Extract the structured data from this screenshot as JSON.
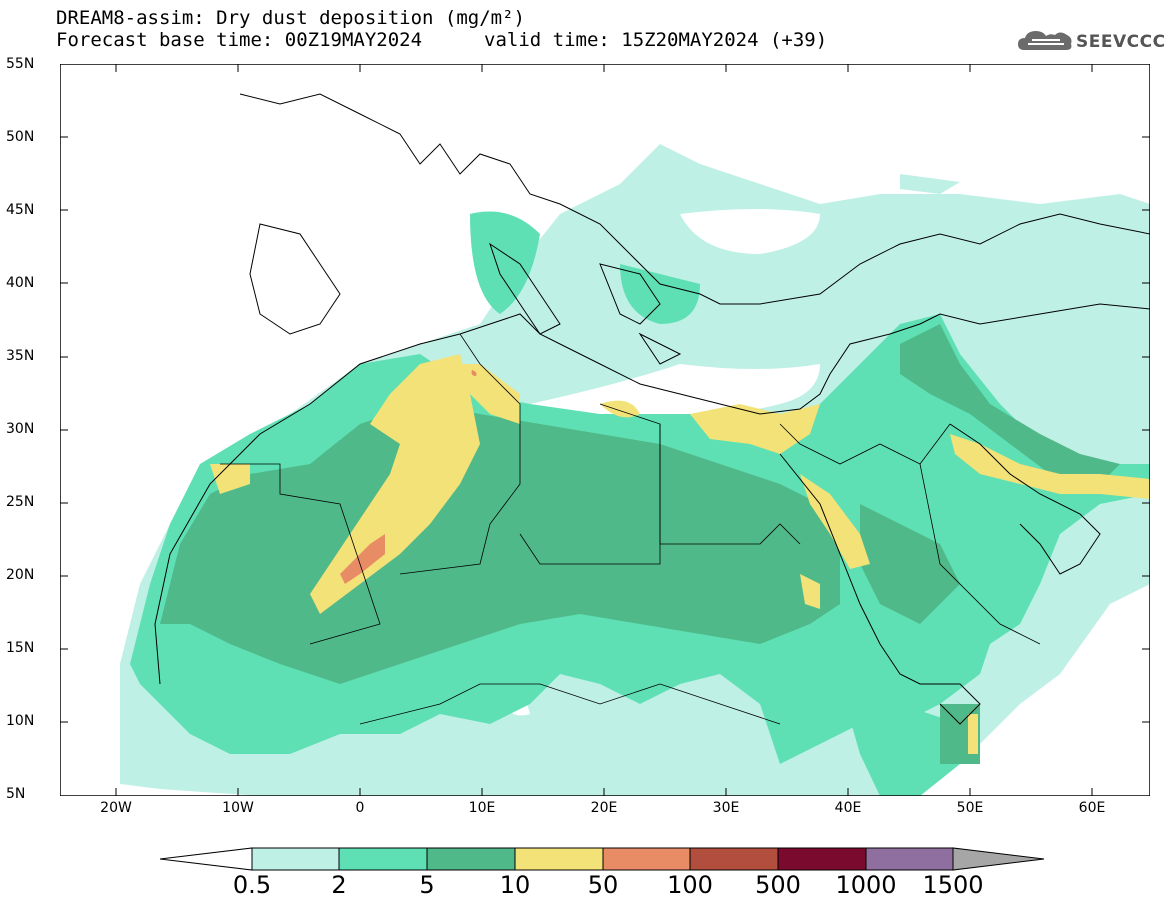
{
  "title_line1": "DREAM8-assim: Dry dust deposition (mg/m²)",
  "title_line2": "Forecast base time: 00Z19MAY2024",
  "valid_time": "valid time: 15Z20MAY2024 (+39)",
  "logo_text": "SEEVCCC",
  "logo_icon": "cloud-icon",
  "y_ticks": [
    "55N",
    "50N",
    "45N",
    "40N",
    "35N",
    "30N",
    "25N",
    "20N",
    "15N",
    "10N",
    "5N"
  ],
  "x_ticks": [
    "20W",
    "10W",
    "0",
    "10E",
    "20E",
    "30E",
    "40E",
    "50E",
    "60E"
  ],
  "colorbar": {
    "labels": [
      "0.5",
      "2",
      "5",
      "10",
      "50",
      "100",
      "500",
      "1000",
      "1500"
    ],
    "colors": [
      "#ffffff",
      "#bff0e6",
      "#5ee0b4",
      "#4fb98a",
      "#f3e277",
      "#e88c66",
      "#b14e3d",
      "#7b0a2f",
      "#8f6fa0",
      "#a6a6a6"
    ]
  },
  "colors": {
    "background": "#ffffff",
    "land_outline": "#000000",
    "level_0_5": "#bff0e6",
    "level_2": "#5ee0b4",
    "level_5": "#4fb98a",
    "level_10": "#f3e277",
    "level_50": "#e88c66"
  }
}
